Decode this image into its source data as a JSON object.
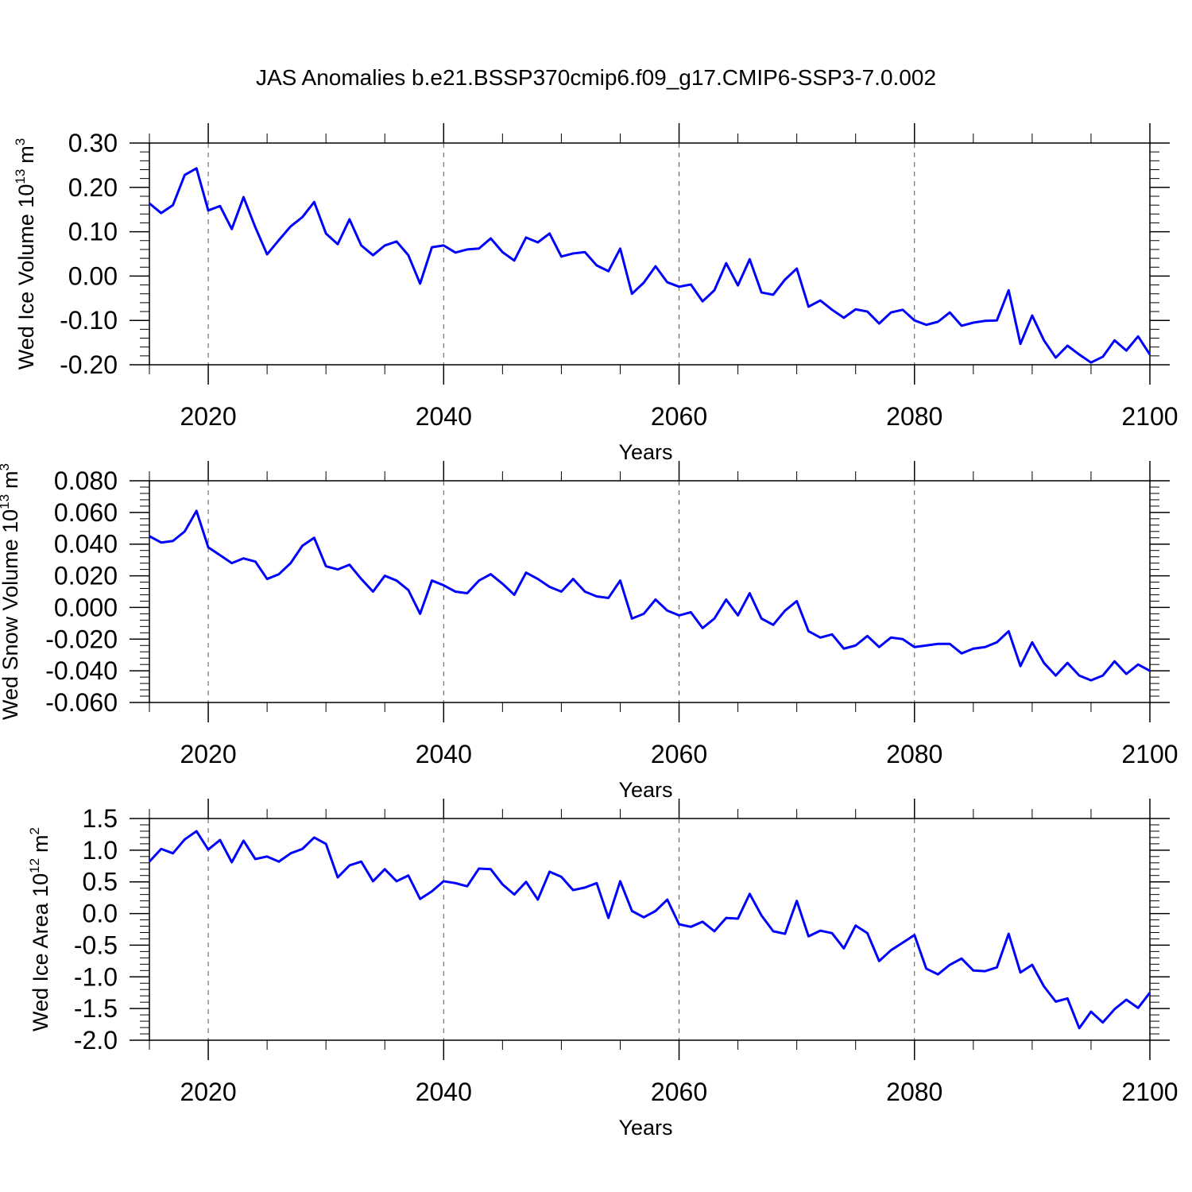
{
  "title": "JAS Anomalies b.e21.BSSP370cmip6.f09_g17.CMIP6-SSP3-7.0.002",
  "chart_data": [
    {
      "type": "line",
      "xlabel": "Years",
      "ylabel": {
        "text": "Wed Ice Volume 10",
        "exponent": "13",
        "unit": "m",
        "unit_exponent": "3"
      },
      "xlim": [
        2015,
        2100
      ],
      "xticks": [
        2020,
        2040,
        2060,
        2080,
        2100
      ],
      "ylim": [
        -0.2,
        0.3
      ],
      "yticks": [
        {
          "value": 0.3,
          "label": "0.30"
        },
        {
          "value": 0.2,
          "label": "0.20"
        },
        {
          "value": 0.1,
          "label": "0.10"
        },
        {
          "value": 0,
          "label": "0.00"
        },
        {
          "value": -0.1,
          "label": "-0.10"
        },
        {
          "value": -0.2,
          "label": "-0.20"
        }
      ],
      "grid": true,
      "color": "#0000ff",
      "x": [
        2015,
        2016,
        2017,
        2018,
        2019,
        2020,
        2021,
        2022,
        2023,
        2024,
        2025,
        2026,
        2027,
        2028,
        2029,
        2030,
        2031,
        2032,
        2033,
        2034,
        2035,
        2036,
        2037,
        2038,
        2039,
        2040,
        2041,
        2042,
        2043,
        2044,
        2045,
        2046,
        2047,
        2048,
        2049,
        2050,
        2051,
        2052,
        2053,
        2054,
        2055,
        2056,
        2057,
        2058,
        2059,
        2060,
        2061,
        2062,
        2063,
        2064,
        2065,
        2066,
        2067,
        2068,
        2069,
        2070,
        2071,
        2072,
        2073,
        2074,
        2075,
        2076,
        2077,
        2078,
        2079,
        2080,
        2081,
        2082,
        2083,
        2084,
        2085,
        2086,
        2087,
        2088,
        2089,
        2090,
        2091,
        2092,
        2093,
        2094,
        2095,
        2096,
        2097,
        2098,
        2099,
        2100
      ],
      "values": [
        0.164,
        0.142,
        0.16,
        0.228,
        0.243,
        0.148,
        0.158,
        0.106,
        0.178,
        0.11,
        0.049,
        0.081,
        0.112,
        0.133,
        0.167,
        0.096,
        0.072,
        0.128,
        0.069,
        0.047,
        0.069,
        0.078,
        0.047,
        -0.017,
        0.065,
        0.069,
        0.053,
        0.06,
        0.062,
        0.085,
        0.054,
        0.035,
        0.087,
        0.076,
        0.096,
        0.044,
        0.051,
        0.054,
        0.024,
        0.011,
        0.062,
        -0.04,
        -0.015,
        0.022,
        -0.014,
        -0.024,
        -0.019,
        -0.057,
        -0.032,
        0.029,
        -0.021,
        0.038,
        -0.037,
        -0.042,
        -0.008,
        0.017,
        -0.069,
        -0.055,
        -0.076,
        -0.094,
        -0.075,
        -0.08,
        -0.107,
        -0.082,
        -0.076,
        -0.1,
        -0.11,
        -0.103,
        -0.082,
        -0.112,
        -0.105,
        -0.101,
        -0.1,
        -0.032,
        -0.153,
        -0.089,
        -0.145,
        -0.184,
        -0.157,
        -0.177,
        -0.195,
        -0.182,
        -0.145,
        -0.168,
        -0.136,
        -0.177
      ]
    },
    {
      "type": "line",
      "xlabel": "Years",
      "ylabel": {
        "text": "Wed Snow Volume 10",
        "exponent": "13",
        "unit": "m",
        "unit_exponent": "3"
      },
      "xlim": [
        2015,
        2100
      ],
      "xticks": [
        2020,
        2040,
        2060,
        2080,
        2100
      ],
      "ylim": [
        -0.06,
        0.08
      ],
      "yticks": [
        {
          "value": 0.08,
          "label": "0.080"
        },
        {
          "value": 0.06,
          "label": "0.060"
        },
        {
          "value": 0.04,
          "label": "0.040"
        },
        {
          "value": 0.02,
          "label": "0.020"
        },
        {
          "value": 0,
          "label": "0.000"
        },
        {
          "value": -0.02,
          "label": "-0.020"
        },
        {
          "value": -0.04,
          "label": "-0.040"
        },
        {
          "value": -0.06,
          "label": "-0.060"
        }
      ],
      "grid": true,
      "color": "#0000ff",
      "x": [
        2015,
        2016,
        2017,
        2018,
        2019,
        2020,
        2021,
        2022,
        2023,
        2024,
        2025,
        2026,
        2027,
        2028,
        2029,
        2030,
        2031,
        2032,
        2033,
        2034,
        2035,
        2036,
        2037,
        2038,
        2039,
        2040,
        2041,
        2042,
        2043,
        2044,
        2045,
        2046,
        2047,
        2048,
        2049,
        2050,
        2051,
        2052,
        2053,
        2054,
        2055,
        2056,
        2057,
        2058,
        2059,
        2060,
        2061,
        2062,
        2063,
        2064,
        2065,
        2066,
        2067,
        2068,
        2069,
        2070,
        2071,
        2072,
        2073,
        2074,
        2075,
        2076,
        2077,
        2078,
        2079,
        2080,
        2081,
        2082,
        2083,
        2084,
        2085,
        2086,
        2087,
        2088,
        2089,
        2090,
        2091,
        2092,
        2093,
        2094,
        2095,
        2096,
        2097,
        2098,
        2099,
        2100
      ],
      "values": [
        0.045,
        0.041,
        0.042,
        0.048,
        0.061,
        0.038,
        0.033,
        0.028,
        0.031,
        0.029,
        0.018,
        0.021,
        0.028,
        0.039,
        0.044,
        0.026,
        0.024,
        0.027,
        0.018,
        0.01,
        0.02,
        0.017,
        0.011,
        -0.004,
        0.017,
        0.014,
        0.01,
        0.009,
        0.017,
        0.021,
        0.015,
        0.008,
        0.022,
        0.018,
        0.013,
        0.01,
        0.018,
        0.01,
        0.007,
        0.006,
        0.017,
        -0.007,
        -0.004,
        0.005,
        -0.002,
        -0.005,
        -0.003,
        -0.013,
        -0.007,
        0.005,
        -0.005,
        0.009,
        -0.007,
        -0.011,
        -0.002,
        0.004,
        -0.015,
        -0.019,
        -0.017,
        -0.026,
        -0.024,
        -0.018,
        -0.025,
        -0.019,
        -0.02,
        -0.025,
        -0.024,
        -0.023,
        -0.023,
        -0.029,
        -0.026,
        -0.025,
        -0.022,
        -0.015,
        -0.037,
        -0.022,
        -0.035,
        -0.043,
        -0.035,
        -0.043,
        -0.046,
        -0.043,
        -0.034,
        -0.042,
        -0.036,
        -0.04
      ]
    },
    {
      "type": "line",
      "xlabel": "Years",
      "ylabel": {
        "text": "Wed Ice Area 10",
        "exponent": "12",
        "unit": "m",
        "unit_exponent": "2"
      },
      "xlim": [
        2015,
        2100
      ],
      "xticks": [
        2020,
        2040,
        2060,
        2080,
        2100
      ],
      "ylim": [
        -2,
        1.5
      ],
      "yticks": [
        1.5,
        {
          "value": 1,
          "label": "1.0"
        },
        0.5,
        {
          "value": 0,
          "label": "0.0"
        },
        -0.5,
        {
          "value": -1,
          "label": "-1.0"
        },
        -1.5,
        {
          "value": -2,
          "label": "-2.0"
        }
      ],
      "grid": true,
      "color": "#0000ff",
      "x": [
        2015,
        2016,
        2017,
        2018,
        2019,
        2020,
        2021,
        2022,
        2023,
        2024,
        2025,
        2026,
        2027,
        2028,
        2029,
        2030,
        2031,
        2032,
        2033,
        2034,
        2035,
        2036,
        2037,
        2038,
        2039,
        2040,
        2041,
        2042,
        2043,
        2044,
        2045,
        2046,
        2047,
        2048,
        2049,
        2050,
        2051,
        2052,
        2053,
        2054,
        2055,
        2056,
        2057,
        2058,
        2059,
        2060,
        2061,
        2062,
        2063,
        2064,
        2065,
        2066,
        2067,
        2068,
        2069,
        2070,
        2071,
        2072,
        2073,
        2074,
        2075,
        2076,
        2077,
        2078,
        2079,
        2080,
        2081,
        2082,
        2083,
        2084,
        2085,
        2086,
        2087,
        2088,
        2089,
        2090,
        2091,
        2092,
        2093,
        2094,
        2095,
        2096,
        2097,
        2098,
        2099,
        2100
      ],
      "values": [
        0.82,
        1.02,
        0.95,
        1.17,
        1.3,
        1.01,
        1.16,
        0.81,
        1.15,
        0.86,
        0.9,
        0.82,
        0.95,
        1.02,
        1.2,
        1.1,
        0.57,
        0.76,
        0.82,
        0.51,
        0.7,
        0.51,
        0.6,
        0.23,
        0.35,
        0.51,
        0.48,
        0.43,
        0.71,
        0.7,
        0.46,
        0.3,
        0.5,
        0.22,
        0.66,
        0.58,
        0.37,
        0.41,
        0.48,
        -0.07,
        0.51,
        0.04,
        -0.06,
        0.04,
        0.22,
        -0.17,
        -0.21,
        -0.13,
        -0.28,
        -0.07,
        -0.08,
        0.31,
        -0.03,
        -0.28,
        -0.32,
        0.2,
        -0.36,
        -0.27,
        -0.31,
        -0.55,
        -0.19,
        -0.31,
        -0.75,
        -0.58,
        -0.46,
        -0.34,
        -0.87,
        -0.96,
        -0.81,
        -0.71,
        -0.9,
        -0.91,
        -0.85,
        -0.32,
        -0.93,
        -0.81,
        -1.15,
        -1.39,
        -1.34,
        -1.81,
        -1.55,
        -1.72,
        -1.51,
        -1.36,
        -1.49,
        -1.25
      ]
    }
  ]
}
